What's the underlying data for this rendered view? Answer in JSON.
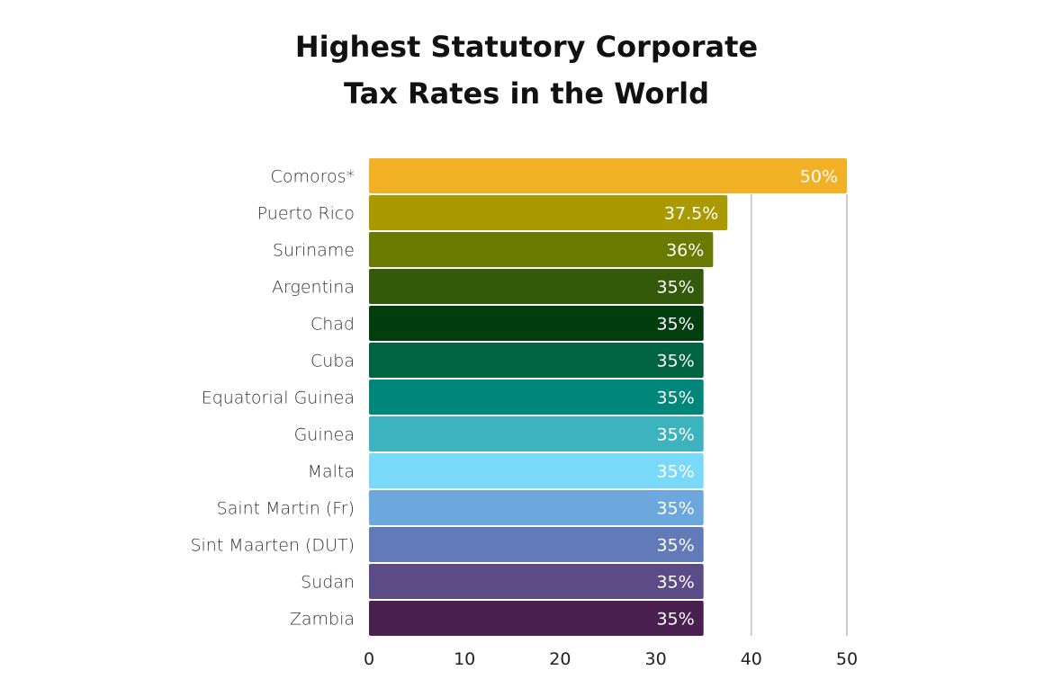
{
  "chart_data": {
    "type": "bar",
    "orientation": "horizontal",
    "title": [
      "Highest Statutory Corporate",
      "Tax Rates in the World"
    ],
    "xlabel": "",
    "ylabel": "",
    "xlim": [
      0,
      50
    ],
    "x_ticks": [
      "0",
      "10",
      "20",
      "30",
      "40",
      "50"
    ],
    "grid": "vertical lines at 40 and 50",
    "categories": [
      "Comoros*",
      "Puerto Rico",
      "Suriname",
      "Argentina",
      "Chad",
      "Cuba",
      "Equatorial Guinea",
      "Guinea",
      "Malta",
      "Saint Martin (Fr)",
      "Sint Maarten (DUT)",
      "Sudan",
      "Zambia"
    ],
    "values": [
      50,
      37.5,
      36,
      35,
      35,
      35,
      35,
      35,
      35,
      35,
      35,
      35,
      35
    ],
    "data_labels": [
      "50%",
      "37.5%",
      "36%",
      "35%",
      "35%",
      "35%",
      "35%",
      "35%",
      "35%",
      "35%",
      "35%",
      "35%",
      "35%"
    ],
    "colors": [
      "#F2B124",
      "#A89A00",
      "#687A00",
      "#325A0A",
      "#003D0F",
      "#006342",
      "#00877A",
      "#3CB3BF",
      "#7AD9F9",
      "#6CA8DE",
      "#627BB8",
      "#5B4C88",
      "#4A2050"
    ],
    "gridline_color": "#cccccc"
  }
}
